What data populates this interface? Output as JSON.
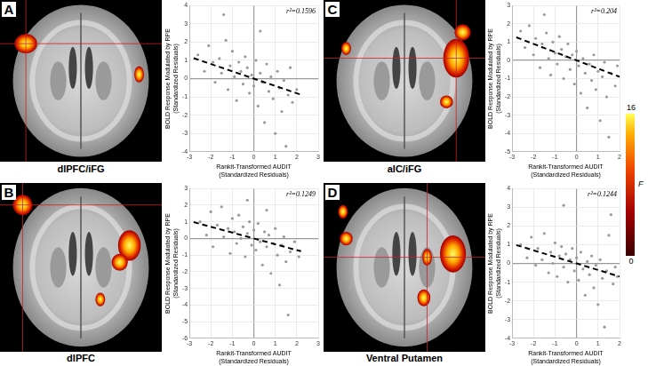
{
  "panels": [
    {
      "letter": "A",
      "region": "dlPFC/iFG"
    },
    {
      "letter": "B",
      "region": "dlPFC"
    },
    {
      "letter": "C",
      "region": "aIC/iFG"
    },
    {
      "letter": "D",
      "region": "Ventral Putamen"
    }
  ],
  "colorbar": {
    "range": [
      0,
      16
    ],
    "ticks": [
      0,
      16
    ],
    "label": "F"
  },
  "chart_data": [
    {
      "type": "scatter",
      "x_label": [
        "Rankit-Transformed AUDIT",
        "(Standardized Residuals)"
      ],
      "y_label": [
        "BOLD Response Modulated by RPE",
        "(Standardized Residuals)"
      ],
      "annotations": [
        {
          "text": "r²=0.1596"
        }
      ],
      "xlim": [
        -3,
        3
      ],
      "xticks": [
        -3,
        -2,
        -1,
        0,
        1,
        2,
        3
      ],
      "ylim": [
        -4,
        4
      ],
      "yticks": [
        -4,
        -3,
        -2,
        -1,
        0,
        1,
        2,
        3,
        4
      ],
      "grid": true,
      "series": [
        {
          "type": "scatter",
          "color": "#9a9a9a",
          "marker": "circle",
          "x": [
            -2.6,
            -2.3,
            -2.1,
            -1.9,
            -1.8,
            -1.6,
            -1.5,
            -1.3,
            -1.2,
            -1.1,
            -1.0,
            -0.9,
            -0.8,
            -0.7,
            -0.6,
            -0.5,
            -0.4,
            -0.3,
            -0.2,
            -0.1,
            0.0,
            0.1,
            0.2,
            0.3,
            0.4,
            0.5,
            0.6,
            0.7,
            0.8,
            0.9,
            1.0,
            1.1,
            1.2,
            1.3,
            1.4,
            1.5,
            1.6,
            1.7,
            1.8,
            2.0,
            -1.4,
            0.3
          ],
          "values": [
            1.3,
            0.4,
            1.8,
            0.9,
            -0.2,
            1.1,
            0.3,
            2.1,
            -0.6,
            0.7,
            1.5,
            0.1,
            -1.2,
            0.9,
            0.4,
            -0.3,
            1.2,
            0.6,
            -0.8,
            0.2,
            -0.4,
            1.0,
            -1.5,
            0.3,
            -0.2,
            -2.4,
            0.8,
            -0.7,
            0.1,
            -1.1,
            -3.0,
            0.4,
            -0.5,
            -1.8,
            -0.1,
            -3.7,
            -0.9,
            0.6,
            -1.3,
            -0.6,
            3.5,
            2.6
          ]
        },
        {
          "type": "line",
          "color": "#000000",
          "line_style": "dashed",
          "x": [
            -2.8,
            2.2
          ],
          "values": [
            1.12,
            -0.88
          ]
        }
      ]
    },
    {
      "type": "scatter",
      "x_label": [
        "Rankit-Transformed AUDIT",
        "(Standardized Residuals)"
      ],
      "y_label": [
        "BOLD Response Modulated by RPE",
        "(Standardized Residuals)"
      ],
      "annotations": [
        {
          "text": "r²=0.1249"
        }
      ],
      "xlim": [
        -3,
        3
      ],
      "xticks": [
        -3,
        -2,
        -1,
        0,
        1,
        2,
        3
      ],
      "ylim": [
        -6,
        3
      ],
      "yticks": [
        -6,
        -5,
        -4,
        -3,
        -2,
        -1,
        0,
        1,
        2,
        3
      ],
      "grid": true,
      "series": [
        {
          "type": "scatter",
          "color": "#9a9a9a",
          "marker": "circle",
          "x": [
            -2.5,
            -2.2,
            -2.0,
            -1.9,
            -1.7,
            -1.5,
            -1.4,
            -1.2,
            -1.1,
            -1.0,
            -0.9,
            -0.8,
            -0.7,
            -0.6,
            -0.5,
            -0.4,
            -0.3,
            -0.2,
            -0.1,
            0.0,
            0.1,
            0.2,
            0.3,
            0.4,
            0.5,
            0.6,
            0.7,
            0.8,
            0.9,
            1.0,
            1.1,
            1.2,
            1.3,
            1.4,
            1.5,
            1.6,
            1.7,
            1.9,
            2.1,
            -0.3,
            0.6
          ],
          "values": [
            1.0,
            0.2,
            1.6,
            -0.5,
            0.8,
            1.9,
            0.1,
            0.6,
            -0.9,
            1.2,
            0.4,
            -0.3,
            1.4,
            0.0,
            0.7,
            -1.1,
            0.3,
            1.0,
            -0.4,
            0.5,
            -0.7,
            0.9,
            -0.2,
            -1.6,
            0.4,
            -0.5,
            0.2,
            -2.1,
            -0.3,
            0.6,
            -1.0,
            -2.8,
            -0.4,
            0.1,
            -1.4,
            -4.6,
            -0.8,
            -0.2,
            -1.1,
            2.3,
            1.7
          ]
        },
        {
          "type": "line",
          "color": "#000000",
          "line_style": "dashed",
          "x": [
            -2.8,
            2.2
          ],
          "values": [
            0.98,
            -0.77
          ]
        }
      ]
    },
    {
      "type": "scatter",
      "x_label": [
        "Rankit-Transformed AUDIT",
        "(Standardized Residuals)"
      ],
      "y_label": [
        "BOLD Response Modulated by RPE",
        "(Standardized Residuals)"
      ],
      "annotations": [
        {
          "text": "r²=0.204"
        }
      ],
      "xlim": [
        -3,
        2
      ],
      "xticks": [
        -3,
        -2,
        -1,
        0,
        1,
        2
      ],
      "ylim": [
        -5,
        3
      ],
      "yticks": [
        -5,
        -4,
        -3,
        -2,
        -1,
        0,
        1,
        2,
        3
      ],
      "grid": true,
      "series": [
        {
          "type": "scatter",
          "color": "#9a9a9a",
          "marker": "circle",
          "x": [
            -2.6,
            -2.4,
            -2.2,
            -2.0,
            -1.9,
            -1.7,
            -1.6,
            -1.4,
            -1.3,
            -1.2,
            -1.1,
            -1.0,
            -0.9,
            -0.8,
            -0.7,
            -0.6,
            -0.5,
            -0.4,
            -0.3,
            -0.2,
            -0.1,
            0.0,
            0.1,
            0.2,
            0.3,
            0.4,
            0.5,
            0.6,
            0.7,
            0.8,
            0.9,
            1.0,
            1.1,
            1.2,
            1.3,
            1.4,
            1.5,
            1.6,
            1.8,
            1.9,
            -1.5
          ],
          "values": [
            1.6,
            0.7,
            1.9,
            0.3,
            1.2,
            -0.4,
            0.9,
            1.5,
            0.1,
            -0.8,
            1.0,
            0.4,
            -0.2,
            1.3,
            0.6,
            -1.0,
            0.2,
            0.9,
            -0.5,
            0.3,
            -1.3,
            0.5,
            -0.3,
            -1.8,
            0.1,
            -0.7,
            -2.6,
            -0.2,
            -1.1,
            0.3,
            -1.6,
            -0.6,
            -3.3,
            -0.9,
            -0.1,
            -2.0,
            -4.2,
            -0.7,
            -1.4,
            -0.3,
            2.5
          ]
        },
        {
          "type": "line",
          "color": "#000000",
          "line_style": "dashed",
          "x": [
            -2.8,
            2.0
          ],
          "values": [
            1.26,
            -0.9
          ]
        }
      ]
    },
    {
      "type": "scatter",
      "x_label": [
        "Rankit-Transformed AUDIT",
        "(Standardized Residuals)"
      ],
      "y_label": [
        "BOLD Response Modulated by RPE",
        "(Standardized Residuals)"
      ],
      "annotations": [
        {
          "text": "r²=0.1244"
        }
      ],
      "xlim": [
        -3,
        2
      ],
      "xticks": [
        -3,
        -2,
        -1,
        0,
        1,
        2
      ],
      "ylim": [
        -4,
        4
      ],
      "yticks": [
        -4,
        -3,
        -2,
        -1,
        0,
        1,
        2,
        3,
        4
      ],
      "grid": true,
      "series": [
        {
          "type": "scatter",
          "color": "#9a9a9a",
          "marker": "circle",
          "x": [
            -2.6,
            -2.3,
            -2.1,
            -1.9,
            -1.8,
            -1.6,
            -1.5,
            -1.3,
            -1.2,
            -1.1,
            -1.0,
            -0.9,
            -0.8,
            -0.7,
            -0.6,
            -0.5,
            -0.4,
            -0.3,
            -0.2,
            -0.1,
            0.0,
            0.1,
            0.2,
            0.3,
            0.4,
            0.5,
            0.6,
            0.7,
            0.8,
            0.9,
            1.0,
            1.1,
            1.2,
            1.3,
            1.4,
            1.5,
            1.6,
            1.7,
            1.8,
            1.9,
            -0.6
          ],
          "values": [
            1.0,
            0.3,
            1.4,
            -0.1,
            0.8,
            0.2,
            1.6,
            -0.5,
            0.6,
            0.0,
            1.1,
            -0.7,
            0.4,
            0.9,
            -0.2,
            0.5,
            -1.0,
            0.2,
            0.8,
            -0.4,
            0.3,
            -0.9,
            0.6,
            -0.3,
            -1.7,
            0.1,
            -0.6,
            0.4,
            -1.3,
            -0.1,
            -2.2,
            0.2,
            -0.8,
            -3.4,
            -0.4,
            1.5,
            2.6,
            -1.1,
            -0.2,
            -0.7,
            3.1
          ]
        },
        {
          "type": "line",
          "color": "#000000",
          "line_style": "dashed",
          "x": [
            -2.8,
            2.0
          ],
          "values": [
            0.98,
            -0.7
          ]
        }
      ]
    }
  ]
}
